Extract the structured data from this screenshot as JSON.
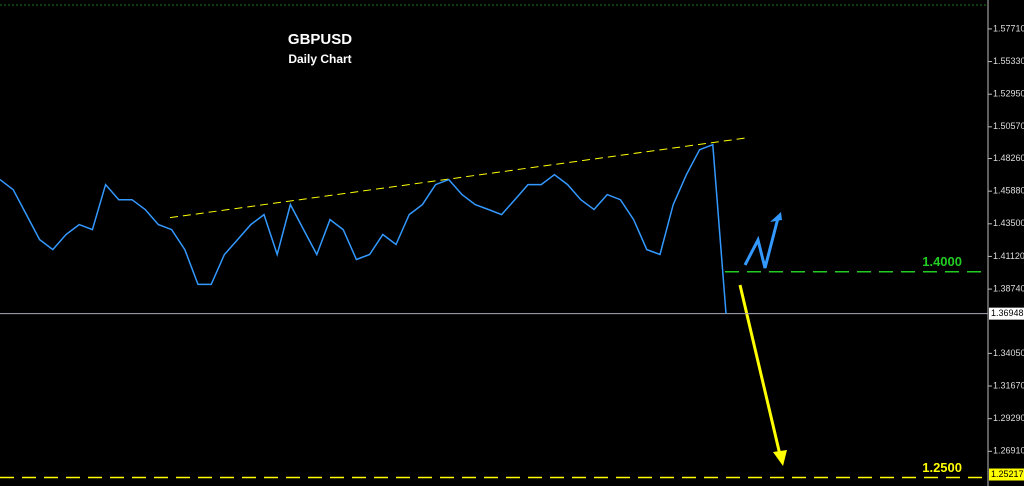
{
  "chart_data": {
    "type": "line",
    "title": "GBPUSD",
    "subtitle": "Daily Chart",
    "series": [
      {
        "name": "GBPUSD",
        "color": "#3399ff",
        "values": [
          1.4672,
          1.4599,
          1.4417,
          1.4235,
          1.4162,
          1.4272,
          1.4344,
          1.4308,
          1.4636,
          1.4526,
          1.4526,
          1.4454,
          1.4344,
          1.4308,
          1.4162,
          1.3908,
          1.3908,
          1.4126,
          1.4235,
          1.4344,
          1.4417,
          1.4126,
          1.449,
          1.4308,
          1.4126,
          1.4381,
          1.4308,
          1.409,
          1.4126,
          1.4272,
          1.4199,
          1.4417,
          1.449,
          1.4636,
          1.4672,
          1.4563,
          1.449,
          1.4454,
          1.4417,
          1.4526,
          1.4636,
          1.4636,
          1.4708,
          1.4636,
          1.4526,
          1.4454,
          1.4563,
          1.4526,
          1.4381,
          1.4162,
          1.4126,
          1.449,
          1.4708,
          1.489,
          1.4927,
          1.3695
        ]
      }
    ],
    "trendline": {
      "color": "#ffff00",
      "values": [
        1.4395,
        1.4978
      ]
    },
    "levels": [
      {
        "value": 1.4,
        "label": "1.4000",
        "color": "#22cc22"
      },
      {
        "value": 1.25,
        "label": "1.2500",
        "color": "#ffff00"
      }
    ],
    "price_tags": [
      {
        "value": 1.36948,
        "label": "1.36948"
      },
      {
        "value": 1.25217,
        "label": "1.25217"
      }
    ],
    "ylim": [
      1.2438,
      1.5982
    ],
    "yticks": [
      {
        "value": 1.5771,
        "label": "1.57710"
      },
      {
        "value": 1.5533,
        "label": "1.55330"
      },
      {
        "value": 1.5295,
        "label": "1.52950"
      },
      {
        "value": 1.5057,
        "label": "1.50570"
      },
      {
        "value": 1.4826,
        "label": "1.48260"
      },
      {
        "value": 1.4588,
        "label": "1.45880"
      },
      {
        "value": 1.435,
        "label": "1.43500"
      },
      {
        "value": 1.4112,
        "label": "1.41120"
      },
      {
        "value": 1.3874,
        "label": "1.38740"
      },
      {
        "value": 1.3405,
        "label": "1.34050"
      },
      {
        "value": 1.3167,
        "label": "1.31670"
      },
      {
        "value": 1.2929,
        "label": "1.29290"
      },
      {
        "value": 1.2691,
        "label": "1.26910"
      }
    ]
  }
}
